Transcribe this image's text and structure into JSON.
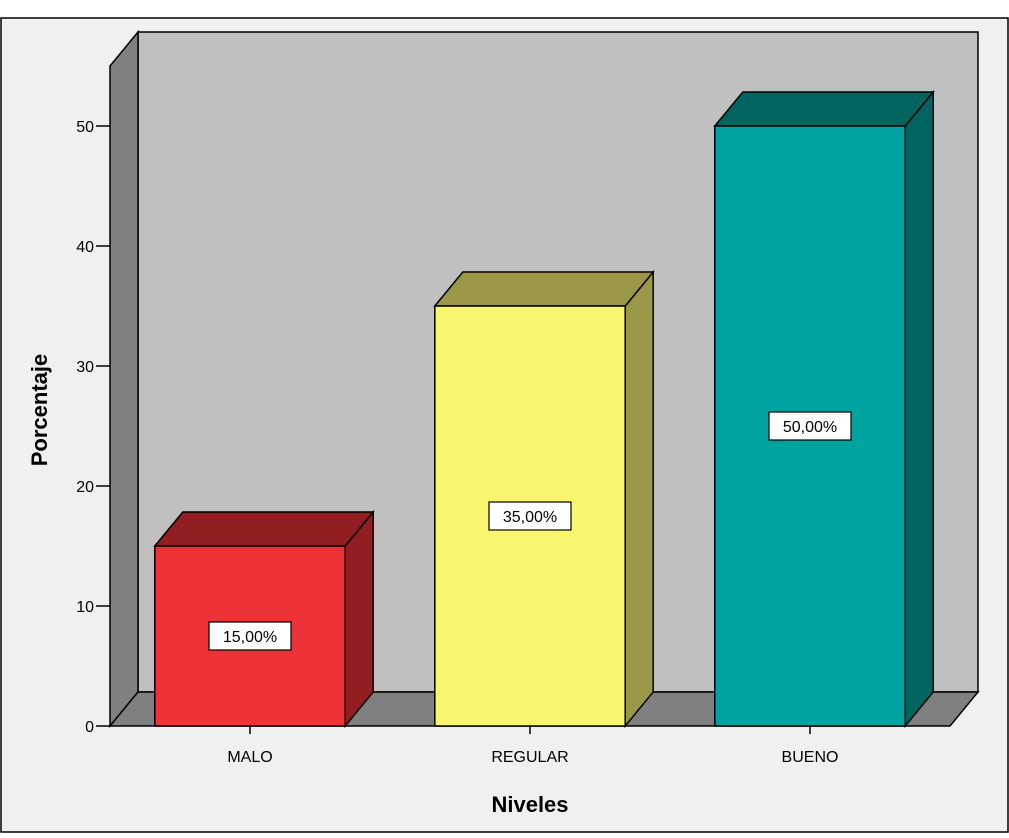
{
  "chart_data": {
    "type": "bar",
    "categories": [
      "MALO",
      "REGULAR",
      "BUENO"
    ],
    "values": [
      15,
      35,
      50
    ],
    "data_labels": [
      "15,00%",
      "35,00%",
      "50,00%"
    ],
    "title": "",
    "xlabel": "Niveles",
    "ylabel": "Porcentaje",
    "ylim": [
      0,
      55
    ],
    "yticks": [
      0,
      10,
      20,
      30,
      40,
      50
    ],
    "ytick_labels": [
      "0",
      "10",
      "20",
      "30",
      "40",
      "50"
    ],
    "three_d": true,
    "grid": false,
    "legend": "none",
    "colors": {
      "front": [
        "#ee3338",
        "#faf56f",
        "#00a3a0"
      ],
      "top": [
        "#921e22",
        "#9a9847",
        "#006561"
      ],
      "side": [
        "#921e22",
        "#9a9847",
        "#006561"
      ],
      "back_wall": "#c0c0c0",
      "floor_and_side_wall": "#808080",
      "outer_background": "#f0f0f0"
    }
  }
}
